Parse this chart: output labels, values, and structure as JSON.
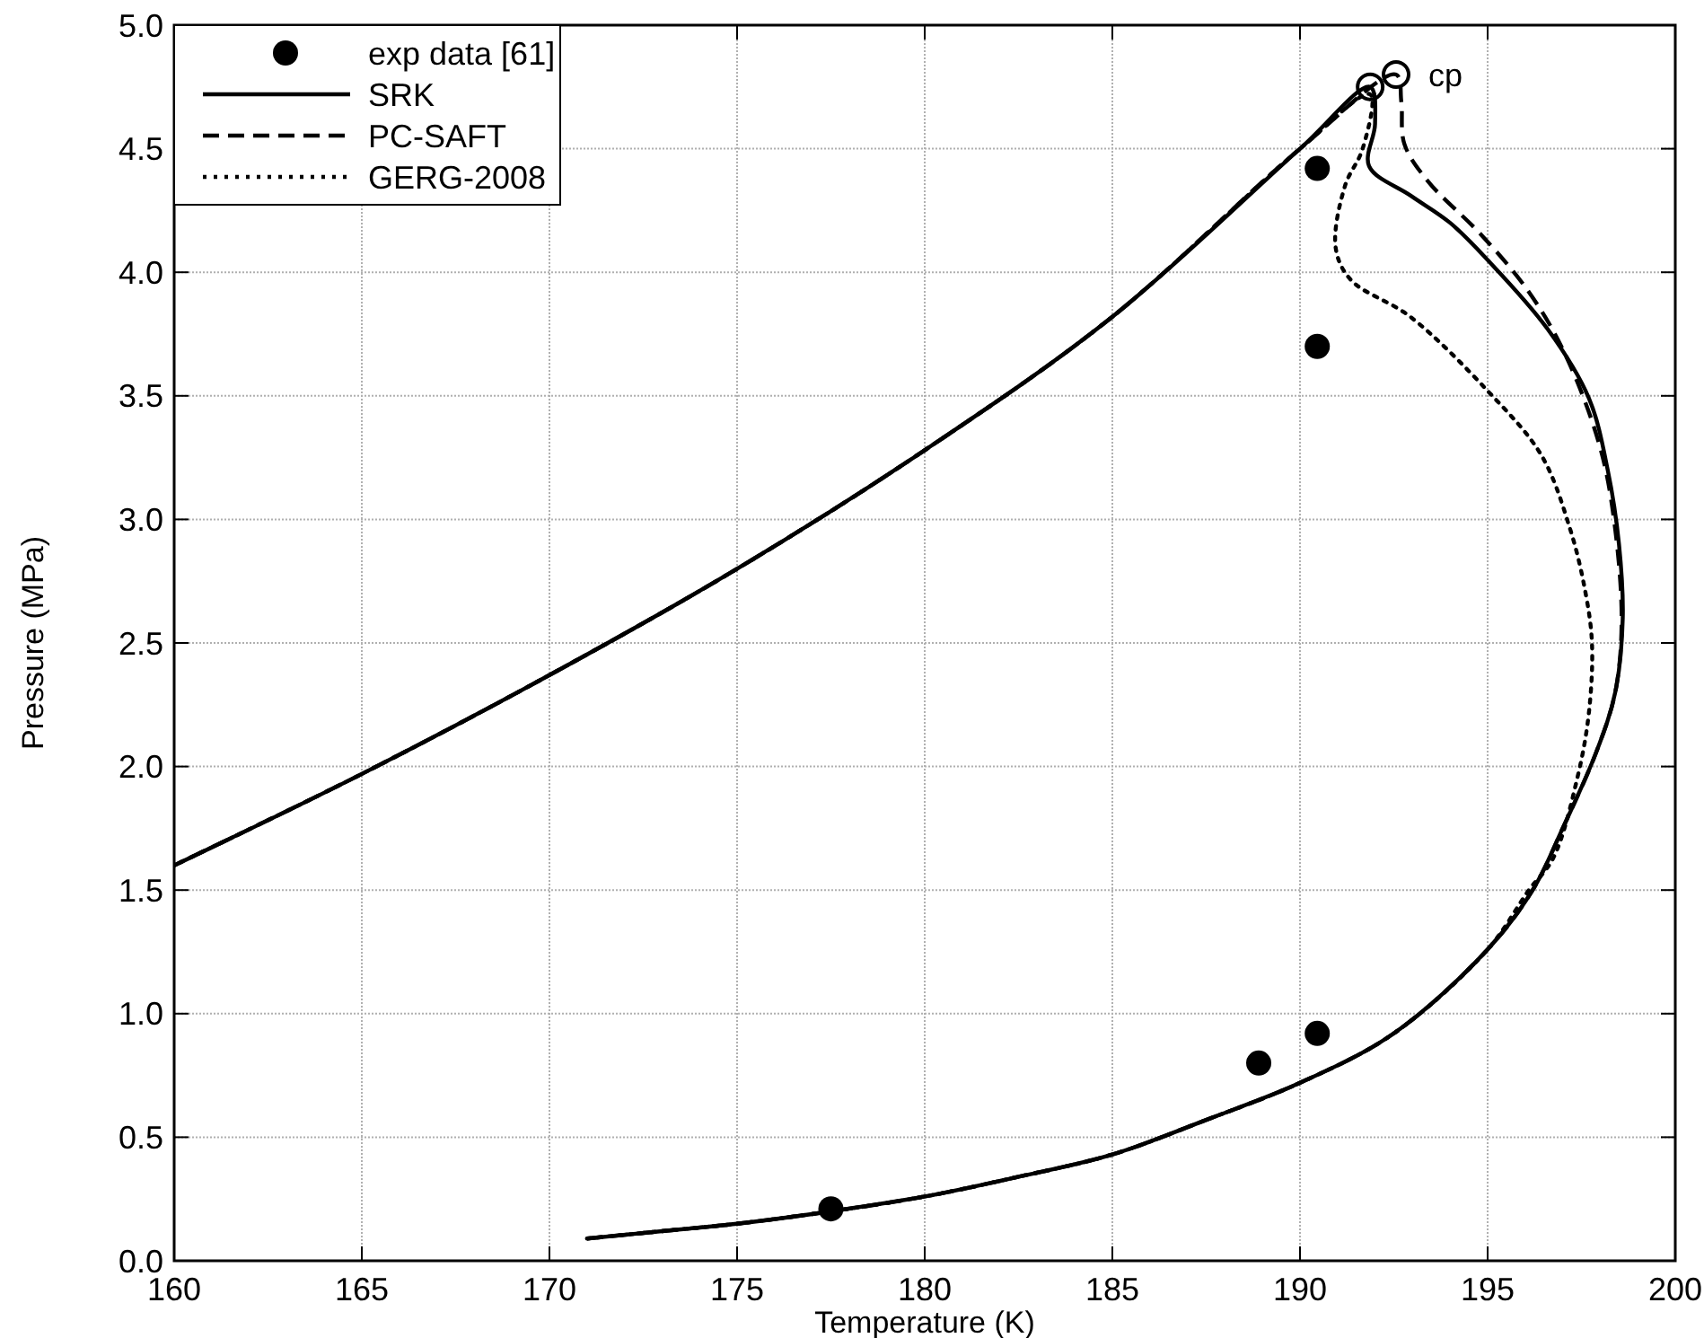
{
  "chart_data": {
    "type": "line",
    "xlabel": "Temperature (K)",
    "ylabel": "Pressure (MPa)",
    "xlim": [
      160,
      200
    ],
    "xticks": [
      160,
      165,
      170,
      175,
      180,
      185,
      190,
      195,
      200
    ],
    "ylim": [
      0,
      5
    ],
    "yticks": [
      {
        "value": 0,
        "label": "0.0"
      },
      {
        "value": 0.5,
        "label": "0.5"
      },
      {
        "value": 1,
        "label": "1.0"
      },
      {
        "value": 1.5,
        "label": "1.5"
      },
      {
        "value": 2,
        "label": "2.0"
      },
      {
        "value": 2.5,
        "label": "2.5"
      },
      {
        "value": 3,
        "label": "3.0"
      },
      {
        "value": 3.5,
        "label": "3.5"
      },
      {
        "value": 4,
        "label": "4.0"
      },
      {
        "value": 4.5,
        "label": "4.5"
      },
      {
        "value": 5,
        "label": "5.0"
      }
    ],
    "grid": true,
    "legend": "top left",
    "annotations": [
      {
        "text": "cp",
        "x": 192.56,
        "y": 4.8
      }
    ],
    "series": [
      {
        "name": "exp data [61]",
        "type": "scatter",
        "marker": "circle",
        "color": "#000000",
        "x": [
          177.5,
          188.9,
          190.46,
          190.46,
          190.46
        ],
        "values": [
          0.21,
          0.8,
          0.92,
          3.7,
          4.42
        ]
      },
      {
        "name": "SRK",
        "line_style": "solid",
        "color": "#000000",
        "x": [
          171,
          173,
          175,
          177.5,
          180,
          182.5,
          185,
          187.5,
          190,
          192.5,
          195,
          196.2,
          197,
          197.9,
          198.4,
          198.6,
          198.5,
          198.2,
          197.7,
          196.6,
          195,
          194,
          192.95,
          191.84,
          192,
          191.87,
          190,
          185,
          180,
          175,
          170,
          165,
          160
        ],
        "values": [
          0.09,
          0.12,
          0.15,
          0.2,
          0.26,
          0.34,
          0.43,
          0.57,
          0.72,
          0.92,
          1.26,
          1.5,
          1.75,
          2.06,
          2.3,
          2.6,
          2.9,
          3.2,
          3.49,
          3.77,
          4.05,
          4.2,
          4.31,
          4.43,
          4.6,
          4.75,
          4.5,
          3.82,
          3.28,
          2.8,
          2.37,
          1.97,
          1.6
        ]
      },
      {
        "name": "PC-SAFT",
        "line_style": "dashed",
        "color": "#000000",
        "x": [
          171,
          173,
          175,
          177.5,
          180,
          182.5,
          185,
          187.5,
          190,
          192.5,
          195,
          196.2,
          197,
          197.9,
          198.4,
          198.57,
          198.4,
          198,
          197.06,
          196.1,
          194.84,
          193.4,
          192.78,
          192.7,
          192.56,
          190,
          185,
          180,
          175,
          170,
          165,
          160
        ],
        "values": [
          0.09,
          0.12,
          0.15,
          0.2,
          0.26,
          0.34,
          0.43,
          0.57,
          0.72,
          0.92,
          1.26,
          1.5,
          1.75,
          2.06,
          2.3,
          2.58,
          2.96,
          3.29,
          3.67,
          3.92,
          4.15,
          4.37,
          4.52,
          4.69,
          4.8,
          4.5,
          3.82,
          3.28,
          2.8,
          2.37,
          1.97,
          1.6
        ]
      },
      {
        "name": "GERG-2008",
        "line_style": "dotted",
        "color": "#000000",
        "x": [
          171,
          173,
          175,
          177.5,
          180,
          182.5,
          185,
          187.5,
          190,
          192.5,
          195,
          196.1,
          196.75,
          197.4,
          197.7,
          197.78,
          197.6,
          197.2,
          196.43,
          195,
          192.94,
          191.35,
          190.95,
          191.2,
          191.67,
          191.87,
          190,
          185,
          180,
          175,
          170,
          165,
          160
        ],
        "values": [
          0.09,
          0.12,
          0.15,
          0.2,
          0.26,
          0.34,
          0.43,
          0.57,
          0.72,
          0.92,
          1.26,
          1.5,
          1.63,
          1.96,
          2.22,
          2.5,
          2.71,
          2.96,
          3.26,
          3.52,
          3.82,
          3.97,
          4.1,
          4.35,
          4.5,
          4.72,
          4.5,
          3.82,
          3.28,
          2.8,
          2.37,
          1.97,
          1.6
        ]
      },
      {
        "type": "scatter",
        "marker": "circle",
        "color": "#000000",
        "x": [
          191.87,
          192.56
        ],
        "values": [
          4.75,
          4.8
        ]
      }
    ]
  }
}
